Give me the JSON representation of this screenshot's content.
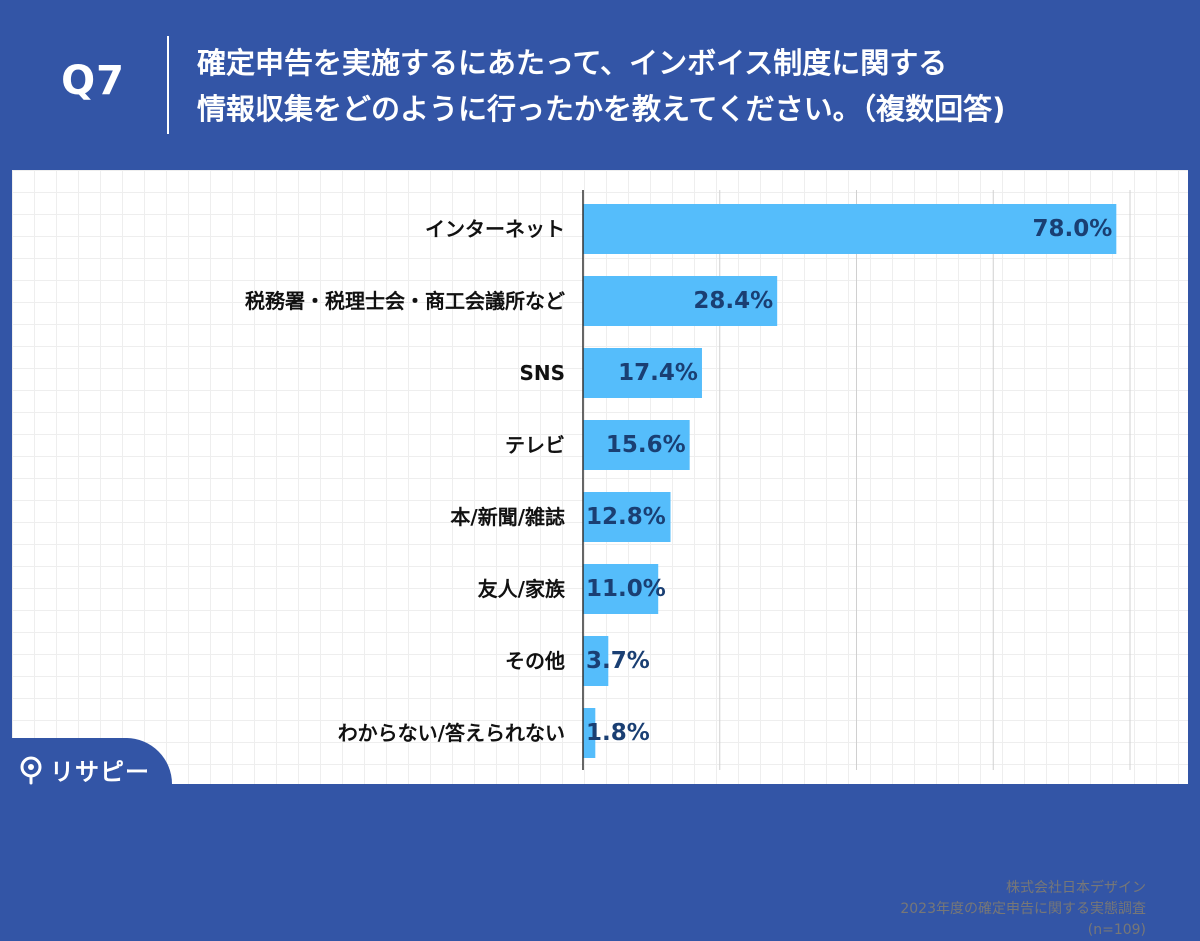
{
  "header": {
    "q_label": "Q7",
    "question_line1": "確定申告を実施するにあたって、インボイス制度に関する",
    "question_line2": "情報収集をどのように行ったかを教えてください。（複数回答)"
  },
  "logo": {
    "text": "リサピー"
  },
  "source": {
    "company": "株式会社日本デザイン",
    "survey": "2023年度の確定申告に関する実態調査",
    "n": "(n=109)"
  },
  "colors": {
    "header_bg": "#3355a6",
    "bar": "#55bdfb",
    "value_text": "#1a3f73",
    "label_text": "#111111"
  },
  "chart_data": {
    "type": "bar",
    "orientation": "horizontal",
    "categories": [
      "インターネット",
      "税務署・税理士会・商工会議所など",
      "SNS",
      "テレビ",
      "本/新聞/雑誌",
      "友人/家族",
      "その他",
      "わからない/答えられない"
    ],
    "values": [
      78.0,
      28.4,
      17.4,
      15.6,
      12.8,
      11.0,
      3.7,
      1.8
    ],
    "value_labels": [
      "78.0%",
      "28.4%",
      "17.4%",
      "15.6%",
      "12.8%",
      "11.0%",
      "3.7%",
      "1.8%"
    ],
    "unit": "%",
    "xlim": [
      0,
      80
    ],
    "grid": true,
    "legend": "none"
  }
}
